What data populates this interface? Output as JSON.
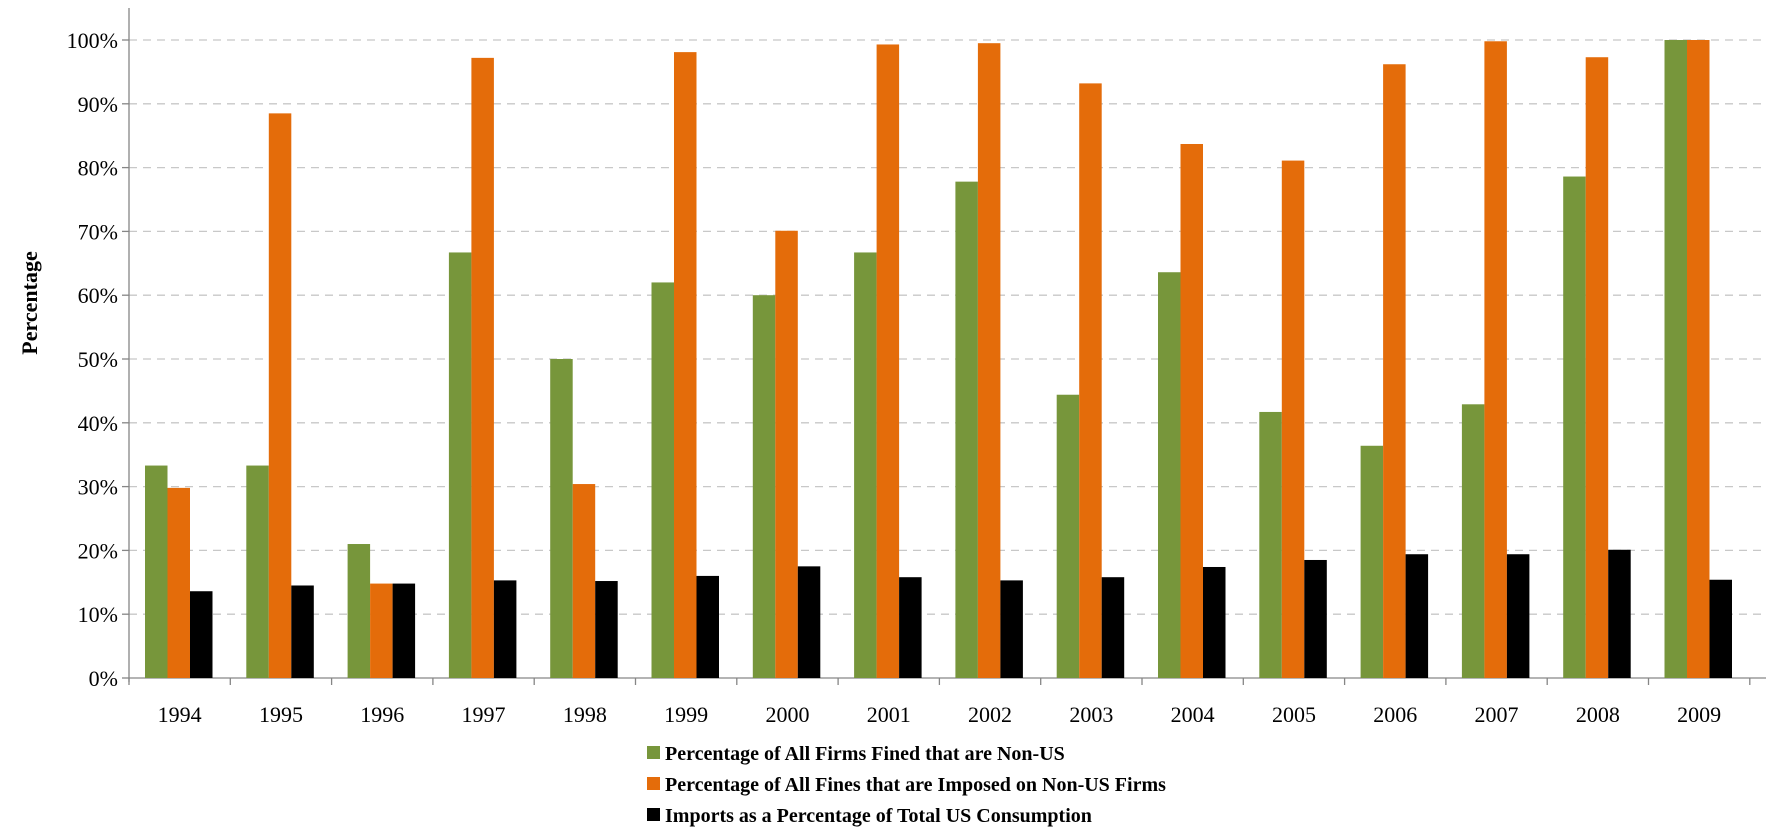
{
  "chart_data": {
    "type": "bar",
    "title": "",
    "xlabel": "",
    "ylabel": "Percentage",
    "ylim": [
      0,
      100
    ],
    "yticks": [
      "0%",
      "10%",
      "20%",
      "30%",
      "40%",
      "50%",
      "60%",
      "70%",
      "80%",
      "90%",
      "100%"
    ],
    "grid": "horizontal dashed",
    "legend_position": "bottom",
    "categories": [
      "1994",
      "1995",
      "1996",
      "1997",
      "1998",
      "1999",
      "2000",
      "2001",
      "2002",
      "2003",
      "2004",
      "2005",
      "2006",
      "2007",
      "2008",
      "2009"
    ],
    "series": [
      {
        "name": "Percentage of All Firms Fined that are Non-US",
        "color": "#77963B",
        "values": [
          33.3,
          33.3,
          21,
          66.7,
          50,
          62,
          60,
          66.7,
          77.8,
          44.4,
          63.6,
          41.7,
          36.4,
          42.9,
          78.6,
          100
        ]
      },
      {
        "name": "Percentage of All Fines that are Imposed on Non-US Firms",
        "color": "#E46C0A",
        "values": [
          29.8,
          88.5,
          14.8,
          97.2,
          30.4,
          98.1,
          70.1,
          99.3,
          99.5,
          93.2,
          83.7,
          81.1,
          96.2,
          99.8,
          97.3,
          100
        ]
      },
      {
        "name": "Imports as a Percentage of Total US Consumption",
        "color": "#000000",
        "values": [
          13.6,
          14.5,
          14.8,
          15.3,
          15.2,
          16,
          17.5,
          15.8,
          15.3,
          15.8,
          17.4,
          18.5,
          19.4,
          19.4,
          20.1,
          15.4
        ]
      }
    ]
  }
}
